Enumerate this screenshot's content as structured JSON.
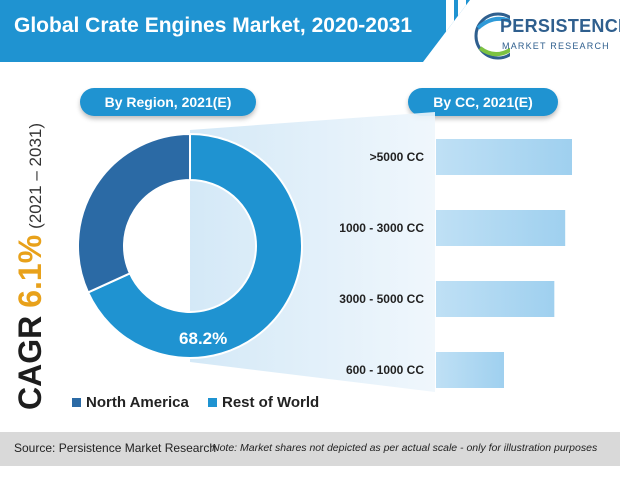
{
  "title": "Global Crate Engines Market, 2020-2031",
  "logo": {
    "main": "PERSISTENCE",
    "sub": "MARKET RESEARCH"
  },
  "cagr": {
    "label": "CAGR",
    "value": "6.1%",
    "period": "(2021 – 2031)"
  },
  "colors": {
    "accent": "#1f93d1",
    "north_america": "#2b6aa5",
    "rest_of_world": "#1f93d1",
    "cagr_value": "#e8a11a"
  },
  "footer": {
    "source": "Source: Persistence Market Research",
    "note": "Note: Market shares not depicted as per actual scale - only for illustration purposes"
  },
  "chart_data": [
    {
      "type": "pie",
      "title": "By Region, 2021(E)",
      "categories": [
        "North America",
        "Rest of World"
      ],
      "values": [
        31.8,
        68.2
      ],
      "data_labels": [
        "",
        "68.2%"
      ],
      "donut": true,
      "legend": "bottom"
    },
    {
      "type": "bar",
      "title": "By CC, 2021(E)",
      "categories": [
        ">5000 CC",
        "1000 - 3000 CC",
        "3000 - 5000 CC",
        "600 - 1000 CC"
      ],
      "values": [
        100,
        95,
        87,
        50
      ],
      "orientation": "horizontal"
    }
  ]
}
